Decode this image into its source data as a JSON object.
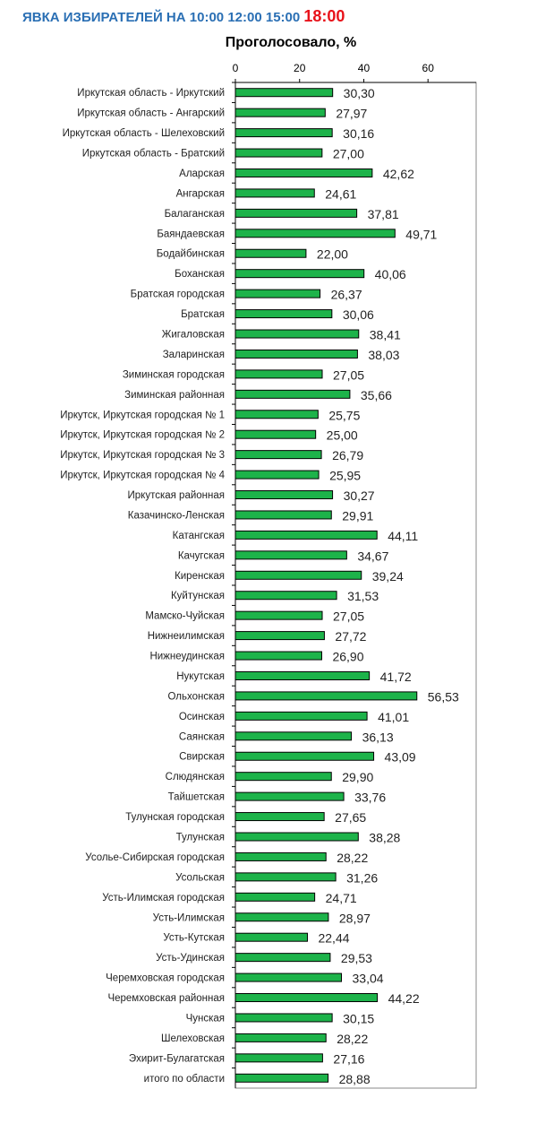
{
  "header": {
    "prefix": "ЯВКА ИЗБИРАТЕЛЕЙ НА",
    "times": [
      "10:00",
      "12:00",
      "15:00"
    ],
    "active_time": "18:00"
  },
  "colors": {
    "bar": "#1db34a",
    "header": "#2a6fb4",
    "active": "#e8121a"
  },
  "chart_data": {
    "type": "bar",
    "orientation": "horizontal",
    "title": "Проголосовало, %",
    "xlabel": "",
    "ylabel": "",
    "xlim": [
      0,
      75
    ],
    "xticks": [
      0,
      20,
      40,
      60
    ],
    "grid": false,
    "categories": [
      "Иркутская область - Иркутский",
      "Иркутская область - Ангарский",
      "Иркутская область - Шелеховский",
      "Иркутская область - Братский",
      "Аларская",
      "Ангарская",
      "Балаганская",
      "Баяндаевская",
      "Бодайбинская",
      "Боханская",
      "Братская городская",
      "Братская",
      "Жигаловская",
      "Заларинская",
      "Зиминская городская",
      "Зиминская районная",
      "Иркутск, Иркутская городская № 1",
      "Иркутск, Иркутская городская № 2",
      "Иркутск, Иркутская городская № 3",
      "Иркутск, Иркутская городская № 4",
      "Иркутская районная",
      "Казачинско-Ленская",
      "Катангская",
      "Качугская",
      "Киренская",
      "Куйтунская",
      "Мамско-Чуйская",
      "Нижнеилимская",
      "Нижнеудинская",
      "Нукутская",
      "Ольхонская",
      "Осинская",
      "Саянская",
      "Свирская",
      "Слюдянская",
      "Тайшетская",
      "Тулунская городская",
      "Тулунская",
      "Усолье-Сибирская городская",
      "Усольская",
      "Усть-Илимская городская",
      "Усть-Илимская",
      "Усть-Кутская",
      "Усть-Удинская",
      "Черемховская городская",
      "Черемховская районная",
      "Чунская",
      "Шелеховская",
      "Эхирит-Булагатская",
      "итого по области"
    ],
    "values": [
      30.3,
      27.97,
      30.16,
      27.0,
      42.62,
      24.61,
      37.81,
      49.71,
      22.0,
      40.06,
      26.37,
      30.06,
      38.41,
      38.03,
      27.05,
      35.66,
      25.75,
      25.0,
      26.79,
      25.95,
      30.27,
      29.91,
      44.11,
      34.67,
      39.24,
      31.53,
      27.05,
      27.72,
      26.9,
      41.72,
      56.53,
      41.01,
      36.13,
      43.09,
      29.9,
      33.76,
      27.65,
      38.28,
      28.22,
      31.26,
      24.71,
      28.97,
      22.44,
      29.53,
      33.04,
      44.22,
      30.15,
      28.22,
      27.16,
      28.88
    ],
    "labels": [
      "30,30",
      "27,97",
      "30,16",
      "27,00",
      "42,62",
      "24,61",
      "37,81",
      "49,71",
      "22,00",
      "40,06",
      "26,37",
      "30,06",
      "38,41",
      "38,03",
      "27,05",
      "35,66",
      "25,75",
      "25,00",
      "26,79",
      "25,95",
      "30,27",
      "29,91",
      "44,11",
      "34,67",
      "39,24",
      "31,53",
      "27,05",
      "27,72",
      "26,90",
      "41,72",
      "56,53",
      "41,01",
      "36,13",
      "43,09",
      "29,90",
      "33,76",
      "27,65",
      "38,28",
      "28,22",
      "31,26",
      "24,71",
      "28,97",
      "22,44",
      "29,53",
      "33,04",
      "44,22",
      "30,15",
      "28,22",
      "27,16",
      "28,88"
    ]
  }
}
